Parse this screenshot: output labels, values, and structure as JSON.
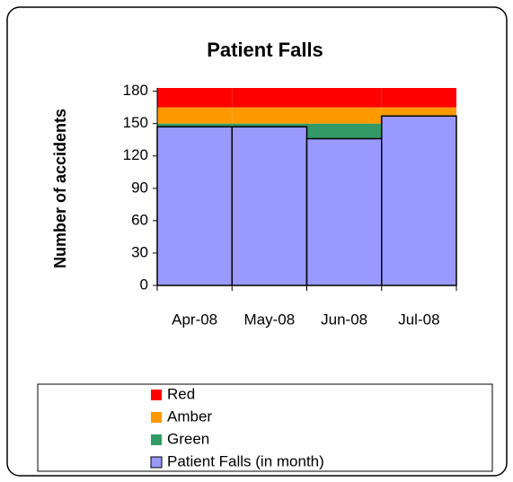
{
  "chart_data": {
    "type": "bar",
    "title": "Patient Falls",
    "y_label": "Number of accidents",
    "categories": [
      "Apr-08",
      "May-08",
      "Jun-08",
      "Jul-08"
    ],
    "series": [
      {
        "name": "Red",
        "color": "#ff0000",
        "stacked": true,
        "values": [
          18,
          18,
          18,
          18
        ]
      },
      {
        "name": "Amber",
        "color": "#ff9900",
        "stacked": true,
        "values": [
          15,
          15,
          15,
          15
        ]
      },
      {
        "name": "Green",
        "color": "#339966",
        "stacked": true,
        "values": [
          150,
          150,
          150,
          150
        ]
      },
      {
        "name": "Patient Falls (in month)",
        "color": "#9999ff",
        "stacked": false,
        "values": [
          147,
          147,
          136,
          157
        ]
      }
    ],
    "ylim": [
      0,
      183
    ],
    "yticks": [
      0,
      30,
      60,
      90,
      120,
      150,
      180
    ],
    "grid": false
  }
}
